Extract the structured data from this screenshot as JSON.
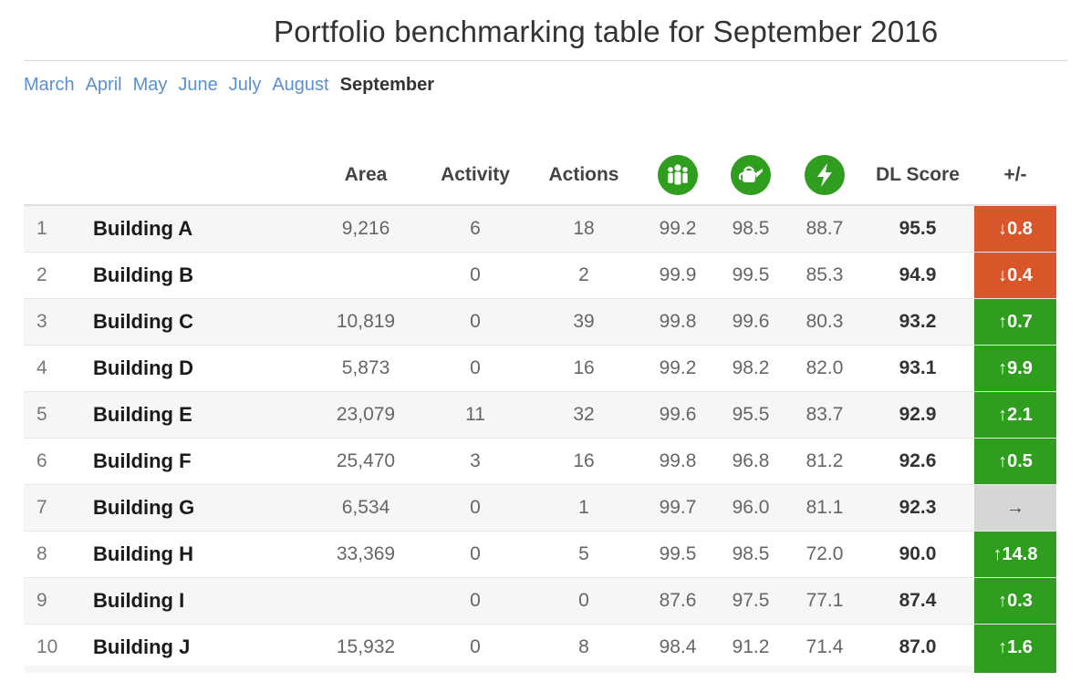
{
  "page": {
    "title": "Portfolio benchmarking table for September 2016"
  },
  "months": [
    {
      "label": "March",
      "active": false
    },
    {
      "label": "April",
      "active": false
    },
    {
      "label": "May",
      "active": false
    },
    {
      "label": "June",
      "active": false
    },
    {
      "label": "July",
      "active": false
    },
    {
      "label": "August",
      "active": false
    },
    {
      "label": "September",
      "active": true
    }
  ],
  "table": {
    "headers": {
      "area": "Area",
      "activity": "Activity",
      "actions": "Actions",
      "occupancy_icon": "people-icon",
      "water_icon": "watering-can-icon",
      "energy_icon": "lightning-bolt-icon",
      "score": "DL Score",
      "delta": "+/-"
    },
    "rows": [
      {
        "rank": "1",
        "name": "Building A",
        "area": "9,216",
        "activity": "6",
        "actions": "18",
        "c1": "99.2",
        "c2": "98.5",
        "c3": "88.7",
        "score": "95.5",
        "delta": "↓0.8",
        "trend": "down"
      },
      {
        "rank": "2",
        "name": "Building B",
        "area": "",
        "activity": "0",
        "actions": "2",
        "c1": "99.9",
        "c2": "99.5",
        "c3": "85.3",
        "score": "94.9",
        "delta": "↓0.4",
        "trend": "down"
      },
      {
        "rank": "3",
        "name": "Building C",
        "area": "10,819",
        "activity": "0",
        "actions": "39",
        "c1": "99.8",
        "c2": "99.6",
        "c3": "80.3",
        "score": "93.2",
        "delta": "↑0.7",
        "trend": "up"
      },
      {
        "rank": "4",
        "name": "Building D",
        "area": "5,873",
        "activity": "0",
        "actions": "16",
        "c1": "99.2",
        "c2": "98.2",
        "c3": "82.0",
        "score": "93.1",
        "delta": "↑9.9",
        "trend": "up"
      },
      {
        "rank": "5",
        "name": "Building E",
        "area": "23,079",
        "activity": "11",
        "actions": "32",
        "c1": "99.6",
        "c2": "95.5",
        "c3": "83.7",
        "score": "92.9",
        "delta": "↑2.1",
        "trend": "up"
      },
      {
        "rank": "6",
        "name": "Building F",
        "area": "25,470",
        "activity": "3",
        "actions": "16",
        "c1": "99.8",
        "c2": "96.8",
        "c3": "81.2",
        "score": "92.6",
        "delta": "↑0.5",
        "trend": "up"
      },
      {
        "rank": "7",
        "name": "Building G",
        "area": "6,534",
        "activity": "0",
        "actions": "1",
        "c1": "99.7",
        "c2": "96.0",
        "c3": "81.1",
        "score": "92.3",
        "delta": "→",
        "trend": "flat"
      },
      {
        "rank": "8",
        "name": "Building H",
        "area": "33,369",
        "activity": "0",
        "actions": "5",
        "c1": "99.5",
        "c2": "98.5",
        "c3": "72.0",
        "score": "90.0",
        "delta": "↑14.8",
        "trend": "up"
      },
      {
        "rank": "9",
        "name": "Building I",
        "area": "",
        "activity": "0",
        "actions": "0",
        "c1": "87.6",
        "c2": "97.5",
        "c3": "77.1",
        "score": "87.4",
        "delta": "↑0.3",
        "trend": "up"
      },
      {
        "rank": "10",
        "name": "Building J",
        "area": "15,932",
        "activity": "0",
        "actions": "8",
        "c1": "98.4",
        "c2": "91.2",
        "c3": "71.4",
        "score": "87.0",
        "delta": "↑1.6",
        "trend": "up"
      }
    ]
  },
  "colors": {
    "accent_green": "#2f9e1f",
    "down_red": "#d9562b",
    "flat_grey": "#d6d6d6",
    "link_blue": "#5b8fd0"
  }
}
